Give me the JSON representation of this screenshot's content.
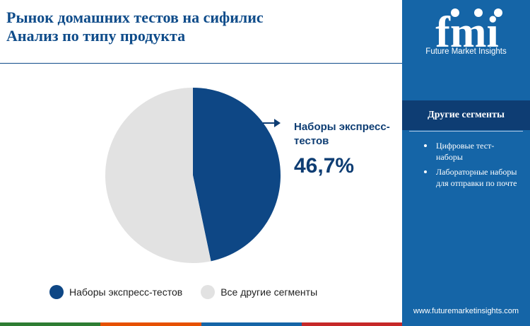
{
  "header": {
    "title_line1": "Рынок домашних тестов на сифилис",
    "title_line2": "Анализ по типу продукта"
  },
  "brand": {
    "logo_text": "fmi",
    "logo_subtitle": "Future Market Insights",
    "website": "www.futuremarketinsights.com"
  },
  "sidebar": {
    "heading": "Другие сегменты",
    "items": [
      "Цифровые тест-наборы",
      "Лабораторные наборы для отправки по почте"
    ]
  },
  "chart_data": {
    "type": "pie",
    "title": "",
    "slices": [
      {
        "label": "Наборы экспресс-тестов",
        "value": 46.7,
        "color": "#0e4785"
      },
      {
        "label": "Все другие сегменты",
        "value": 53.3,
        "color": "#e2e2e2"
      }
    ],
    "callout": {
      "label": "Наборы экспресс-тестов",
      "value_text": "46,7%"
    },
    "legend_position": "bottom"
  },
  "colors": {
    "primary": "#0e4785",
    "sidebar": "#1565a7",
    "sidebar_header": "#0e3d73",
    "other": "#e2e2e2",
    "bottom_bar": [
      "#2e7d32",
      "#e65100",
      "#1565a7",
      "#c62828"
    ]
  }
}
